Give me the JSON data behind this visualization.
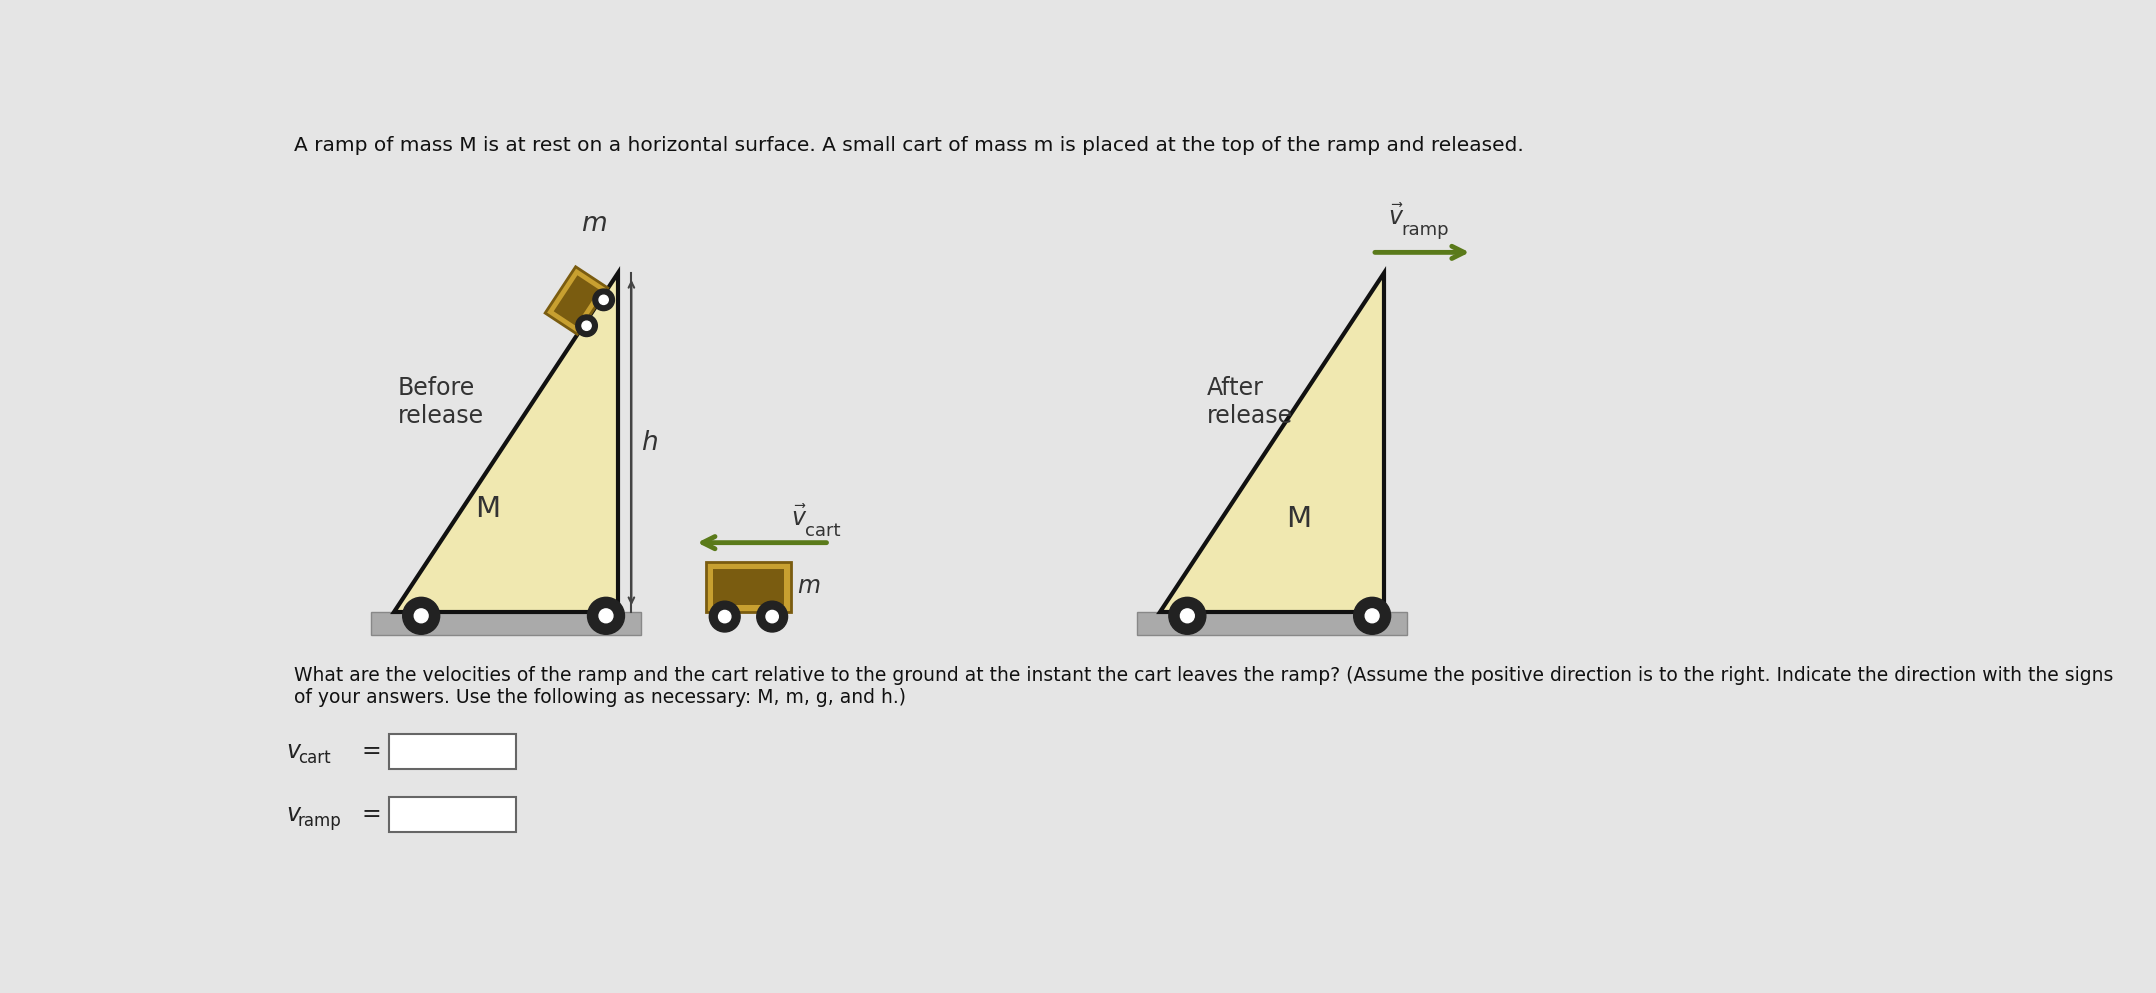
{
  "bg_color": "#e5e5e5",
  "ramp_fill_color": "#f0e8b0",
  "ramp_edge_color": "#111111",
  "cart_body_dark": "#7a5c10",
  "cart_body_light": "#c8a030",
  "wheel_outer_color": "#222222",
  "wheel_inner_color": "#ffffff",
  "ground_color": "#aaaaaa",
  "ground_edge_color": "#888888",
  "arrow_color": "#5a7a1a",
  "text_color": "#333333",
  "title_text": "A ramp of mass M is at rest on a horizontal surface. A small cart of mass m is placed at the top of the ramp and released.",
  "question_text": "What are the velocities of the ramp and the cart relative to the ground at the instant the cart leaves the ramp? (Assume the positive direction is to the right. Indicate the direction with the signs of your answers. Use the following as necessary: M, m, g, and h.)",
  "question_line2": "of your answers. Use the following as necessary: M, m, g, and h.)",
  "before_label": "Before\nrelease",
  "after_label": "After\nrelease",
  "label_M": "M",
  "label_m": "m",
  "label_h": "h"
}
